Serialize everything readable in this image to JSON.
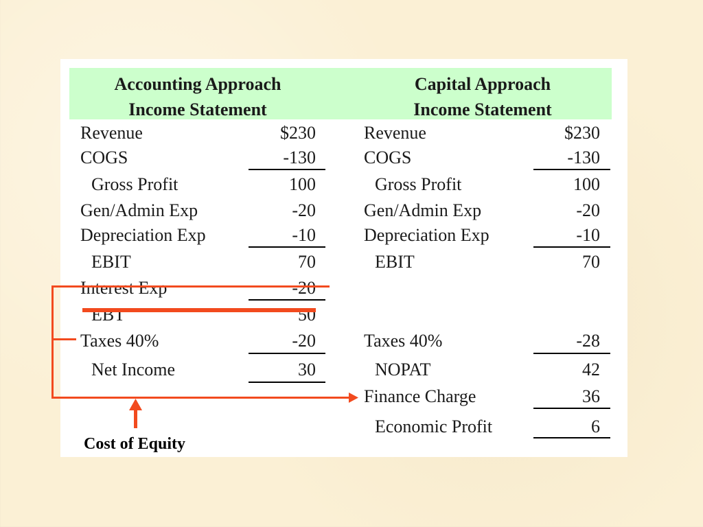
{
  "accounting": {
    "header_line1": "Accounting Approach",
    "header_line2": "Income Statement",
    "rows": [
      {
        "label": "Revenue",
        "value": "$230"
      },
      {
        "label": "COGS",
        "value": "-130"
      },
      {
        "label": "Gross Profit",
        "value": "100"
      },
      {
        "label": "Gen/Admin Exp",
        "value": "-20"
      },
      {
        "label": "Depreciation Exp",
        "value": "-10"
      },
      {
        "label": "EBIT",
        "value": "70"
      },
      {
        "label": "Interest Exp",
        "value": "-20"
      },
      {
        "label": "EBT",
        "value": "50"
      },
      {
        "label": "Taxes 40%",
        "value": "-20"
      },
      {
        "label": "Net Income",
        "value": "30"
      }
    ]
  },
  "capital": {
    "header_line1": "Capital Approach",
    "header_line2": "Income Statement",
    "rows": [
      {
        "label": "Revenue",
        "value": "$230"
      },
      {
        "label": "COGS",
        "value": "-130"
      },
      {
        "label": "Gross Profit",
        "value": "100"
      },
      {
        "label": "Gen/Admin Exp",
        "value": "-20"
      },
      {
        "label": "Depreciation Exp",
        "value": "-10"
      },
      {
        "label": "EBIT",
        "value": "70"
      },
      {
        "label": "Taxes 40%",
        "value": "-28"
      },
      {
        "label": "NOPAT",
        "value": "42"
      },
      {
        "label": "Finance Charge",
        "value": "36"
      },
      {
        "label": "Economic Profit",
        "value": "6"
      }
    ]
  },
  "annotation": {
    "cost_label": "Cost of Equity"
  },
  "colors": {
    "header_band": "#ccffcc",
    "accent_red": "#f24a1e",
    "background": "#fbf0d5"
  }
}
